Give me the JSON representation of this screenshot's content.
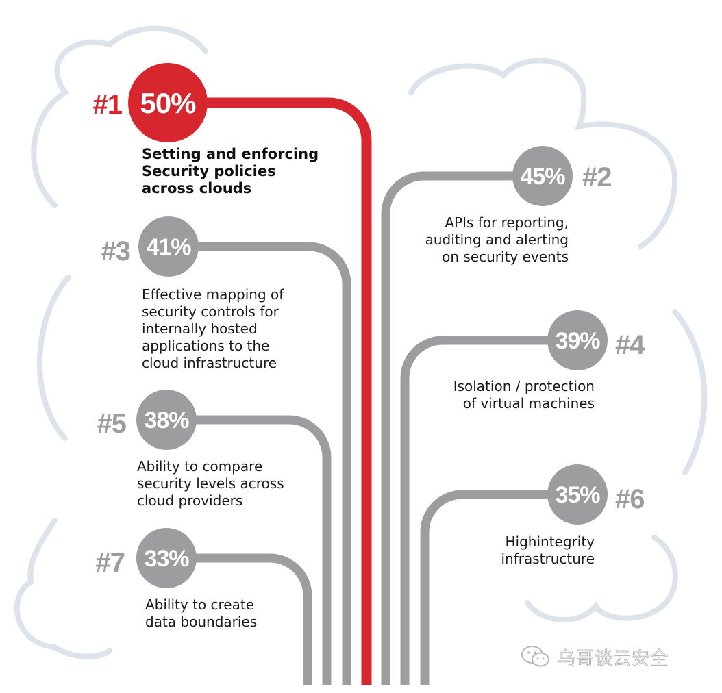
{
  "colors": {
    "accent": "#d7262e",
    "gray": "#9d9c9e",
    "cloud": "#dde3eb"
  },
  "items": [
    {
      "rank": "#1",
      "percent": "50%",
      "value": 50,
      "label": "Setting and enforcing\nSecurity policies\nacross clouds"
    },
    {
      "rank": "#2",
      "percent": "45%",
      "value": 45,
      "label": "APIs for reporting,\nauditing and alerting\non security events"
    },
    {
      "rank": "#3",
      "percent": "41%",
      "value": 41,
      "label": "Effective mapping of\nsecurity controls for\ninternally hosted\napplications to the\ncloud infrastructure"
    },
    {
      "rank": "#4",
      "percent": "39%",
      "value": 39,
      "label": "Isolation / protection\nof virtual machines"
    },
    {
      "rank": "#5",
      "percent": "38%",
      "value": 38,
      "label": "Ability to compare\nsecurity levels across\ncloud providers"
    },
    {
      "rank": "#6",
      "percent": "35%",
      "value": 35,
      "label": "Highintegrity\ninfrastructure"
    },
    {
      "rank": "#7",
      "percent": "33%",
      "value": 33,
      "label": "Ability to create\ndata boundaries"
    }
  ],
  "watermark": {
    "text": "乌哥谈云安全",
    "icon": "wechat-icon"
  }
}
